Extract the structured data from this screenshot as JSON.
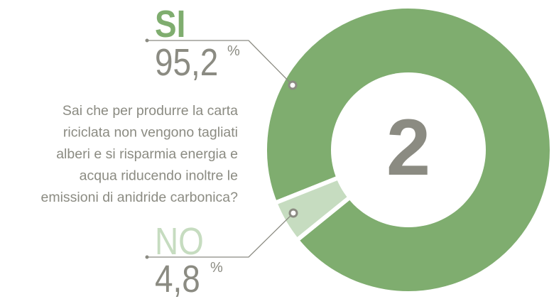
{
  "chart_data": {
    "type": "pie",
    "categories": [
      "SI",
      "NO"
    ],
    "values": [
      95.2,
      4.8
    ],
    "value_labels": [
      "95,2",
      "4,8"
    ],
    "unit": "%",
    "colors": [
      "#7fad6f",
      "#c6dcc0"
    ],
    "center_label": "2",
    "question": [
      "Sai che per produrre la carta",
      "riciclata non vengono tagliati",
      "alberi e si risparmia energia e",
      "acqua riducendo inoltre le",
      "emissioni di anidride carbonica?"
    ]
  }
}
